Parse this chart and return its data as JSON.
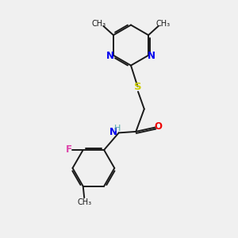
{
  "bg_color": "#f0f0f0",
  "bond_color": "#1a1a1a",
  "n_color": "#0000ee",
  "o_color": "#ee0000",
  "s_color": "#cccc00",
  "f_color": "#dd44aa",
  "h_color": "#55aaaa",
  "text_color": "#1a1a1a",
  "figsize": [
    3.0,
    3.0
  ],
  "dpi": 100,
  "xlim": [
    0,
    10
  ],
  "ylim": [
    0,
    10
  ]
}
